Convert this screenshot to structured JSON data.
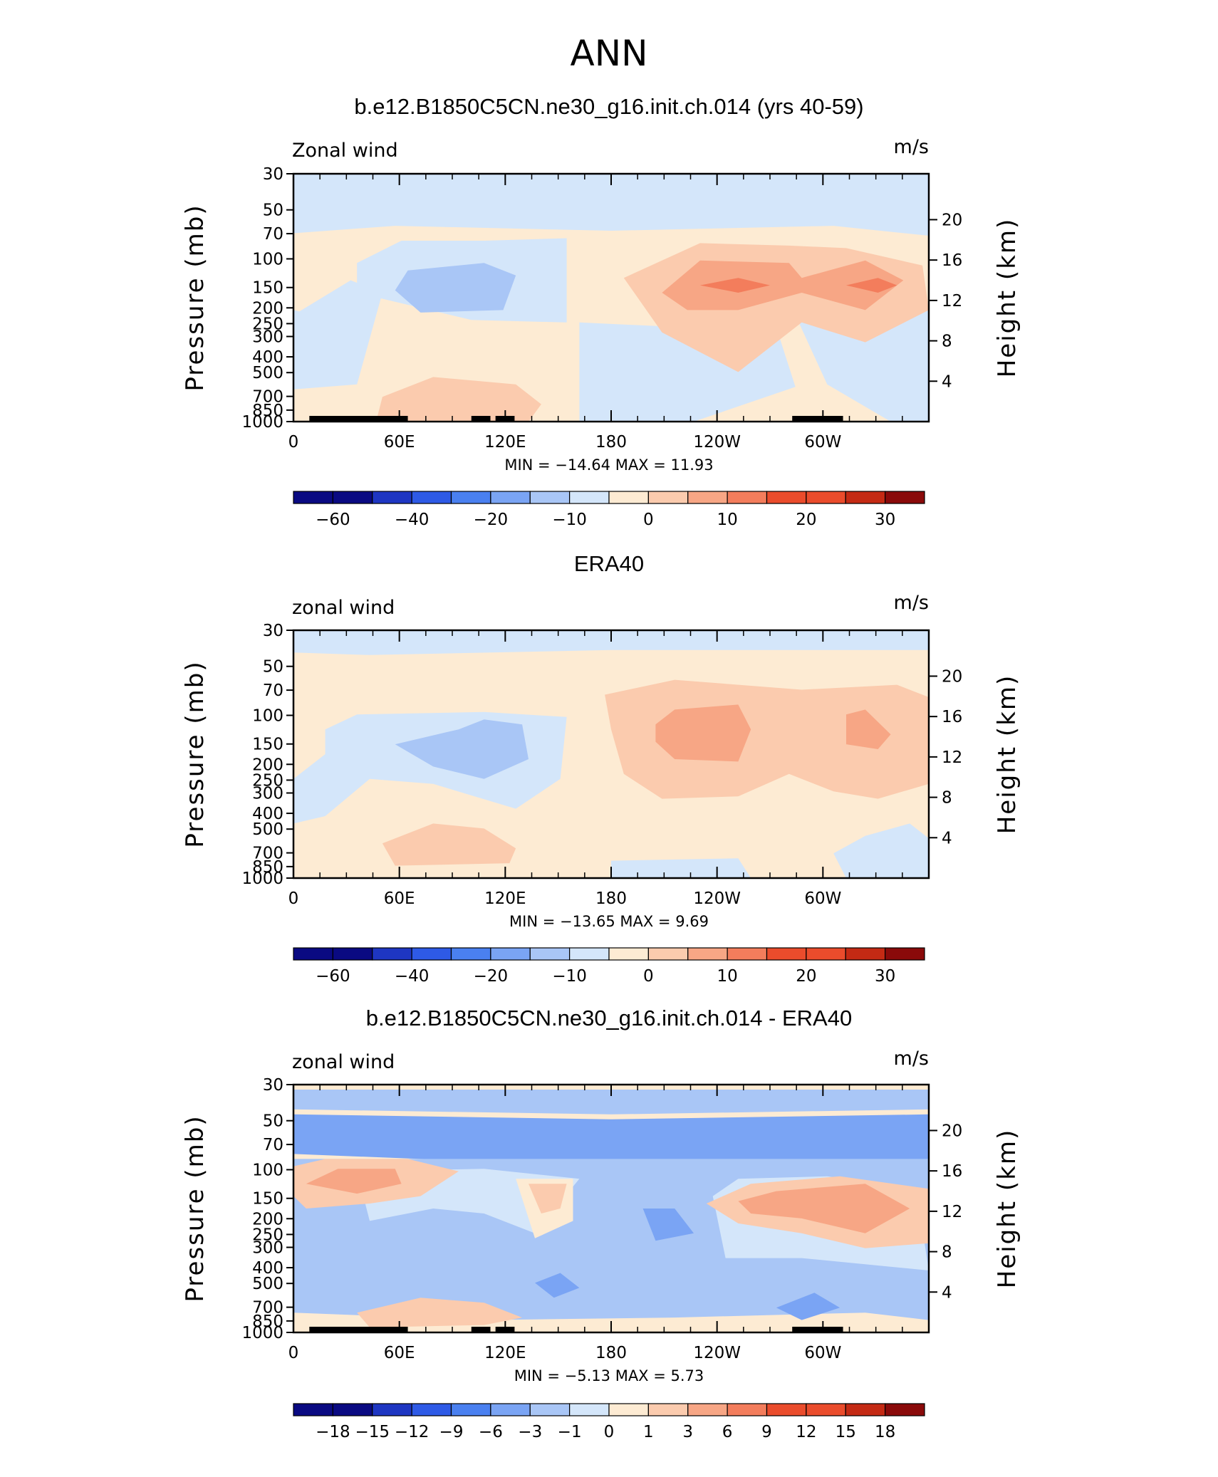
{
  "figure": {
    "title": "ANN"
  },
  "colors": {
    "palette": [
      "#0a0a82",
      "#1e36c2",
      "#2e5ae6",
      "#4a80f0",
      "#7aa4f4",
      "#a9c6f6",
      "#d4e6fa",
      "#fdebd3",
      "#fbcbae",
      "#f7a685",
      "#f37d5c",
      "#ea4c2c",
      "#c42a14",
      "#8a0a0a"
    ],
    "orography": "#000000"
  },
  "chart_data": [
    {
      "type": "heatmap",
      "title": "b.e12.B1850C5CN.ne30_g16.init.ch.014 (yrs 40-59)",
      "variable_label": "Zonal wind",
      "units": "m/s",
      "ylabel": "Pressure (mb)",
      "y2label": "Height (km)",
      "x_ticks": [
        "0",
        "60E",
        "120E",
        "180",
        "120W",
        "60W"
      ],
      "y_ticks": [
        "30",
        "50",
        "70",
        "100",
        "150",
        "200",
        "250",
        "300",
        "400",
        "500",
        "700",
        "850",
        "1000"
      ],
      "y2_ticks": [
        "20",
        "16",
        "12",
        "8",
        "4"
      ],
      "stats_text": "MIN = −14.64   MAX =  11.93",
      "min": -14.64,
      "max": 11.93,
      "colorbar_labels": [
        "−60",
        "−40",
        "−20",
        "−10",
        "0",
        "10",
        "20",
        "30"
      ]
    },
    {
      "type": "heatmap",
      "title": "ERA40",
      "variable_label": "zonal wind",
      "units": "m/s",
      "ylabel": "Pressure (mb)",
      "y2label": "Height (km)",
      "x_ticks": [
        "0",
        "60E",
        "120E",
        "180",
        "120W",
        "60W"
      ],
      "y_ticks": [
        "30",
        "50",
        "70",
        "100",
        "150",
        "200",
        "250",
        "300",
        "400",
        "500",
        "700",
        "850",
        "1000"
      ],
      "y2_ticks": [
        "20",
        "16",
        "12",
        "8",
        "4"
      ],
      "stats_text": "MIN = −13.65   MAX =   9.69",
      "min": -13.65,
      "max": 9.69,
      "colorbar_labels": [
        "−60",
        "−40",
        "−20",
        "−10",
        "0",
        "10",
        "20",
        "30"
      ]
    },
    {
      "type": "heatmap",
      "title": "b.e12.B1850C5CN.ne30_g16.init.ch.014 - ERA40",
      "variable_label": "zonal wind",
      "units": "m/s",
      "ylabel": "Pressure (mb)",
      "y2label": "Height (km)",
      "x_ticks": [
        "0",
        "60E",
        "120E",
        "180",
        "120W",
        "60W"
      ],
      "y_ticks": [
        "30",
        "50",
        "70",
        "100",
        "150",
        "200",
        "250",
        "300",
        "400",
        "500",
        "700",
        "850",
        "1000"
      ],
      "y2_ticks": [
        "20",
        "16",
        "12",
        "8",
        "4"
      ],
      "stats_text": "MIN =   −5.13   MAX =   5.73",
      "min": -5.13,
      "max": 5.73,
      "colorbar_labels": [
        "−18",
        "−15",
        "−12",
        "−9",
        "−6",
        "−3",
        "−1",
        "0",
        "1",
        "3",
        "6",
        "9",
        "12",
        "15",
        "18"
      ]
    }
  ]
}
